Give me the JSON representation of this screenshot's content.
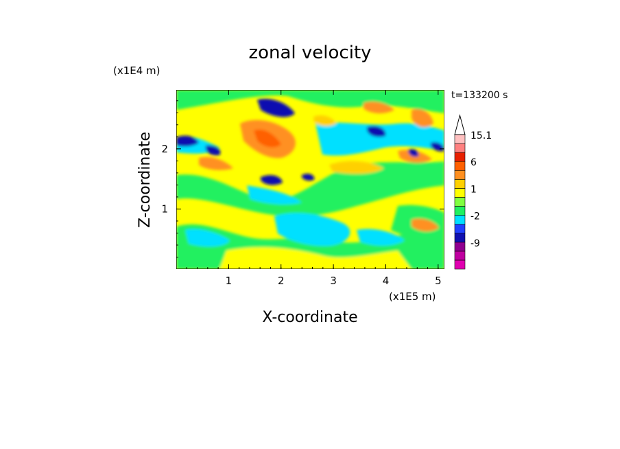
{
  "chart_data": {
    "type": "heatmap",
    "title": "zonal velocity",
    "xlabel": "X-coordinate",
    "ylabel": "Z-coordinate",
    "x_unit": "(x1E5 m)",
    "y_unit": "(x1E4 m)",
    "time_label": "t=133200 s",
    "xlim": [
      0,
      5.12
    ],
    "ylim": [
      0,
      2.98
    ],
    "x_ticks": [
      "1",
      "2",
      "3",
      "4",
      "5"
    ],
    "y_ticks": [
      "1",
      "2"
    ],
    "colorbar": {
      "levels": [
        -15,
        -12,
        -9,
        -6,
        -3,
        -2,
        -1,
        0,
        1,
        2,
        3,
        6,
        9,
        12,
        15.1
      ],
      "tick_labels": [
        "15.1",
        "6",
        "1",
        "-2",
        "-9"
      ],
      "colors": [
        "#e000b0",
        "#c000a0",
        "#900090",
        "#1010b0",
        "#2040ff",
        "#00e0ff",
        "#20f060",
        "#80ff40",
        "#ffff00",
        "#ffd000",
        "#ff9020",
        "#ff6000",
        "#e82000",
        "#ff8080",
        "#ffc0c0"
      ],
      "extend": "max"
    },
    "description_values": "2D contour field of zonal velocity; values mostly between -6 and 9"
  }
}
